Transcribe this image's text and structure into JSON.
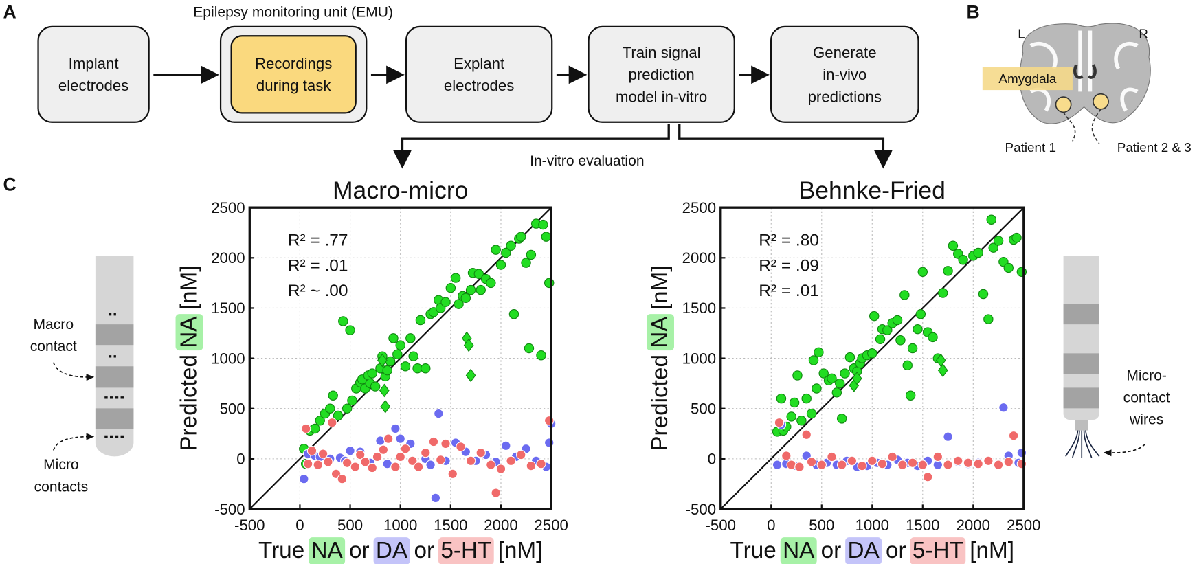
{
  "panel_labels": [
    "A",
    "B",
    "C"
  ],
  "flowchart": {
    "group_label": "Epilepsy monitoring unit (EMU)",
    "steps": [
      [
        "Implant",
        "electrodes"
      ],
      [
        "Recordings",
        "during task"
      ],
      [
        "Explant",
        "electrodes"
      ],
      [
        "Train signal",
        "prediction",
        "model in-vitro"
      ],
      [
        "Generate",
        "in-vivo",
        "predictions"
      ]
    ],
    "branch_label": "In-vitro evaluation"
  },
  "brain": {
    "left": "L",
    "right": "R",
    "region": "Amygdala",
    "patients": [
      "Patient 1",
      "Patient 2 & 3"
    ]
  },
  "electrodes": {
    "macro_contact": [
      "Macro",
      "contact"
    ],
    "micro_contacts": [
      "Micro",
      "contacts"
    ],
    "micro_wires": [
      "Micro-",
      "contact",
      "wires"
    ]
  },
  "chart_data": [
    {
      "type": "scatter",
      "title": "Macro-micro",
      "xlabel": [
        "True ",
        "NA",
        " or ",
        "DA",
        " or ",
        "5-HT",
        " [nM]"
      ],
      "ylabel": [
        "Predicted ",
        "NA",
        " [nM]"
      ],
      "xlim": [
        -500,
        2500
      ],
      "ylim": [
        -500,
        2500
      ],
      "xticks": [
        -500,
        0,
        500,
        1000,
        1500,
        2000,
        2500
      ],
      "yticks": [
        -500,
        0,
        500,
        1000,
        1500,
        2000,
        2500
      ],
      "grid": true,
      "series": [
        {
          "name": "NA",
          "color": "#22dd22",
          "annotation": "R² = .77",
          "x": [
            40,
            60,
            100,
            150,
            200,
            250,
            300,
            330,
            380,
            430,
            470,
            500,
            520,
            560,
            600,
            620,
            650,
            680,
            700,
            720,
            750,
            800,
            820,
            850,
            870,
            900,
            930,
            970,
            1000,
            1050,
            1100,
            1130,
            1170,
            1200,
            1250,
            1300,
            1330,
            1380,
            1400,
            1450,
            1500,
            1550,
            1580,
            1620,
            1650,
            1700,
            1720,
            1780,
            1800,
            1850,
            1900,
            1950,
            2000,
            2050,
            2100,
            2130,
            2180,
            2200,
            2250,
            2280,
            2300,
            2350,
            2400,
            2420,
            2450,
            2480
          ],
          "values": [
            100,
            -50,
            280,
            300,
            380,
            450,
            500,
            630,
            430,
            1370,
            500,
            1280,
            580,
            700,
            760,
            790,
            700,
            830,
            750,
            850,
            720,
            900,
            1020,
            820,
            880,
            970,
            1200,
            1040,
            1130,
            920,
            1200,
            1020,
            900,
            1380,
            900,
            1440,
            1460,
            1580,
            1500,
            1560,
            1700,
            1800,
            1540,
            1620,
            1600,
            1680,
            1850,
            1840,
            1680,
            1790,
            1750,
            2080,
            1930,
            2050,
            2120,
            1440,
            2190,
            2210,
            1950,
            1100,
            2030,
            2340,
            1030,
            2330,
            2210,
            1750
          ]
        },
        {
          "name": "DA",
          "color": "#6b6bf0",
          "annotation": "R² = .01",
          "x": [
            40,
            80,
            150,
            200,
            300,
            400,
            450,
            500,
            600,
            700,
            800,
            870,
            950,
            1000,
            1100,
            1250,
            1300,
            1350,
            1380,
            1450,
            1550,
            1650,
            1750,
            1850,
            1950,
            2050,
            2150,
            2250,
            2350,
            2450,
            2480,
            2500
          ],
          "values": [
            -200,
            50,
            30,
            20,
            0,
            10,
            -20,
            80,
            70,
            -40,
            180,
            -50,
            300,
            200,
            150,
            0,
            -60,
            -390,
            450,
            -20,
            160,
            70,
            -20,
            40,
            -30,
            130,
            20,
            100,
            -20,
            -80,
            160,
            350
          ]
        },
        {
          "name": "5-HT",
          "color": "#f06a6a",
          "annotation": "R² ~ .00",
          "x": [
            60,
            80,
            120,
            180,
            230,
            280,
            320,
            360,
            420,
            470,
            550,
            600,
            650,
            720,
            770,
            830,
            880,
            950,
            1000,
            1050,
            1120,
            1180,
            1250,
            1330,
            1400,
            1450,
            1520,
            1600,
            1700,
            1800,
            1900,
            1950,
            2000,
            2100,
            2200,
            2300,
            2400,
            2480
          ],
          "values": [
            300,
            -50,
            80,
            -60,
            50,
            -30,
            360,
            -150,
            -200,
            -40,
            -80,
            40,
            -30,
            -90,
            20,
            90,
            200,
            -80,
            20,
            100,
            -20,
            -80,
            60,
            170,
            -10,
            150,
            -150,
            120,
            -20,
            60,
            -60,
            -340,
            -100,
            -20,
            40,
            -70,
            -50,
            380
          ]
        },
        {
          "color": "#22dd22",
          "marker": "diamond",
          "x": [
            820,
            840,
            850,
            1660,
            1680,
            1700
          ],
          "values": [
            980,
            680,
            520,
            1200,
            1130,
            830
          ]
        }
      ]
    },
    {
      "type": "scatter",
      "title": "Behnke-Fried",
      "xlabel": [
        "True ",
        "NA",
        " or ",
        "DA",
        " or ",
        "5-HT",
        " [nM]"
      ],
      "ylabel": [
        "Predicted ",
        "NA",
        " [nM]"
      ],
      "xlim": [
        -500,
        2500
      ],
      "ylim": [
        -500,
        2500
      ],
      "xticks": [
        -500,
        0,
        500,
        1000,
        1500,
        2000,
        2500
      ],
      "yticks": [
        -500,
        0,
        500,
        1000,
        1500,
        2000,
        2500
      ],
      "grid": true,
      "series": [
        {
          "name": "NA",
          "color": "#22dd22",
          "annotation": "R² = .80",
          "x": [
            60,
            100,
            120,
            150,
            200,
            230,
            260,
            300,
            350,
            400,
            420,
            450,
            470,
            520,
            570,
            600,
            650,
            680,
            700,
            730,
            780,
            820,
            850,
            880,
            900,
            950,
            1000,
            1020,
            1080,
            1100,
            1150,
            1200,
            1250,
            1280,
            1320,
            1350,
            1380,
            1400,
            1450,
            1480,
            1500,
            1550,
            1600,
            1650,
            1700,
            1750,
            1800,
            1850,
            1900,
            2000,
            2050,
            2100,
            2150,
            2180,
            2200,
            2250,
            2300,
            2350,
            2400,
            2430,
            2480
          ],
          "values": [
            270,
            600,
            280,
            320,
            420,
            560,
            830,
            380,
            600,
            450,
            980,
            700,
            1060,
            850,
            780,
            800,
            660,
            750,
            400,
            850,
            1010,
            900,
            870,
            950,
            1000,
            1030,
            1050,
            1420,
            1190,
            1290,
            1280,
            1350,
            1380,
            1180,
            1630,
            930,
            630,
            1100,
            1290,
            1440,
            1860,
            1260,
            1210,
            1000,
            1650,
            1870,
            2120,
            2040,
            1980,
            2020,
            2050,
            1640,
            1390,
            2380,
            2100,
            2170,
            1960,
            1900,
            2180,
            2200,
            1860
          ]
        },
        {
          "name": "DA",
          "color": "#6b6bf0",
          "annotation": "R² = .09",
          "x": [
            60,
            100,
            150,
            250,
            350,
            450,
            550,
            650,
            750,
            850,
            950,
            1050,
            1150,
            1250,
            1350,
            1450,
            1550,
            1650,
            1750,
            1850,
            1950,
            2050,
            2150,
            2250,
            2300,
            2350,
            2450,
            2480
          ],
          "values": [
            -60,
            340,
            -50,
            -70,
            30,
            -60,
            -40,
            -60,
            -20,
            -80,
            -70,
            -40,
            -60,
            -10,
            -40,
            -70,
            -20,
            -60,
            220,
            -30,
            -50,
            -40,
            -20,
            -50,
            510,
            30,
            -40,
            60
          ]
        },
        {
          "name": "5-HT",
          "color": "#f06a6a",
          "annotation": "R² = .01",
          "x": [
            80,
            150,
            200,
            280,
            350,
            400,
            500,
            600,
            700,
            800,
            900,
            1000,
            1100,
            1200,
            1300,
            1400,
            1500,
            1550,
            1650,
            1750,
            1850,
            1950,
            2050,
            2150,
            2250,
            2350,
            2400,
            2480
          ],
          "values": [
            360,
            30,
            -60,
            -80,
            240,
            -30,
            -60,
            20,
            -60,
            -20,
            -70,
            -20,
            -50,
            20,
            -60,
            -40,
            -60,
            -180,
            20,
            -60,
            -20,
            -40,
            -50,
            -20,
            -60,
            -30,
            230,
            -50
          ]
        },
        {
          "color": "#22dd22",
          "marker": "diamond",
          "x": [
            820,
            850,
            1680,
            1700
          ],
          "values": [
            730,
            800,
            980,
            880
          ]
        }
      ]
    }
  ]
}
